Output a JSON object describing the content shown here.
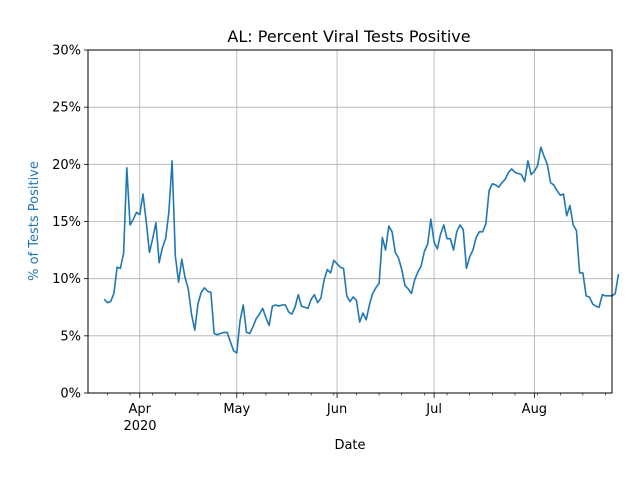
{
  "chart_data": {
    "type": "line",
    "title": "AL: Percent Viral Tests Positive",
    "xlabel": "Date",
    "ylabel": "% of Tests Positive",
    "ylabel_color": "#1f77b4",
    "line_color": "#1f77b4",
    "grid": true,
    "year_label": "2020",
    "xlim": [
      "2020-03-16",
      "2020-08-25"
    ],
    "ylim": [
      0,
      30
    ],
    "yticks": [
      0,
      5,
      10,
      15,
      20,
      25,
      30
    ],
    "ytick_labels": [
      "0%",
      "5%",
      "10%",
      "15%",
      "20%",
      "25%",
      "30%"
    ],
    "xticks": [
      "2020-04-01",
      "2020-05-01",
      "2020-06-01",
      "2020-07-01",
      "2020-08-01"
    ],
    "xtick_labels": [
      "Apr",
      "May",
      "Jun",
      "Jul",
      "Aug"
    ],
    "series": [
      {
        "x_start": "2020-03-21",
        "values": [
          8.2,
          7.9,
          8.0,
          8.7,
          11.0,
          10.9,
          12.2,
          19.7,
          14.7,
          15.2,
          15.8,
          15.6,
          17.4,
          15.0,
          12.3,
          13.5,
          14.9,
          11.4,
          12.7,
          13.5,
          15.8,
          20.3,
          12.0,
          9.7,
          11.7,
          10.1,
          9.1,
          6.9,
          5.5,
          7.8,
          8.8,
          9.2,
          8.9,
          8.8,
          5.2,
          5.1,
          5.2,
          5.3,
          5.3,
          4.5,
          3.7,
          3.5,
          6.3,
          7.7,
          5.3,
          5.2,
          5.8,
          6.5,
          6.9,
          7.4,
          6.6,
          5.9,
          7.6,
          7.7,
          7.6,
          7.7,
          7.7,
          7.1,
          6.9,
          7.5,
          8.6,
          7.6,
          7.5,
          7.4,
          8.2,
          8.6,
          7.9,
          8.3,
          9.9,
          10.8,
          10.5,
          11.6,
          11.3,
          11.0,
          10.9,
          8.5,
          8.0,
          8.4,
          8.1,
          6.2,
          7.0,
          6.4,
          7.7,
          8.7,
          9.2,
          9.6,
          13.6,
          12.5,
          14.6,
          14.1,
          12.3,
          11.8,
          10.8,
          9.4,
          9.1,
          8.7,
          9.9,
          10.6,
          11.1,
          12.4,
          13.0,
          15.2,
          13.2,
          12.6,
          13.9,
          14.7,
          13.5,
          13.5,
          12.5,
          14.1,
          14.7,
          14.3,
          10.9,
          11.9,
          12.5,
          13.6,
          14.1,
          14.1,
          14.8,
          17.7,
          18.3,
          18.2,
          18.0,
          18.4,
          18.7,
          19.3,
          19.6,
          19.3,
          19.2,
          19.1,
          18.5,
          20.3,
          19.1,
          19.4,
          19.9,
          21.5,
          20.7,
          20.0,
          18.4,
          18.2,
          17.7,
          17.3,
          17.4,
          15.5,
          16.4,
          14.7,
          14.2,
          10.5,
          10.5,
          8.5,
          8.4,
          7.8,
          7.6,
          7.5,
          8.6,
          8.5,
          8.5,
          8.5,
          8.7,
          10.4
        ]
      }
    ]
  }
}
